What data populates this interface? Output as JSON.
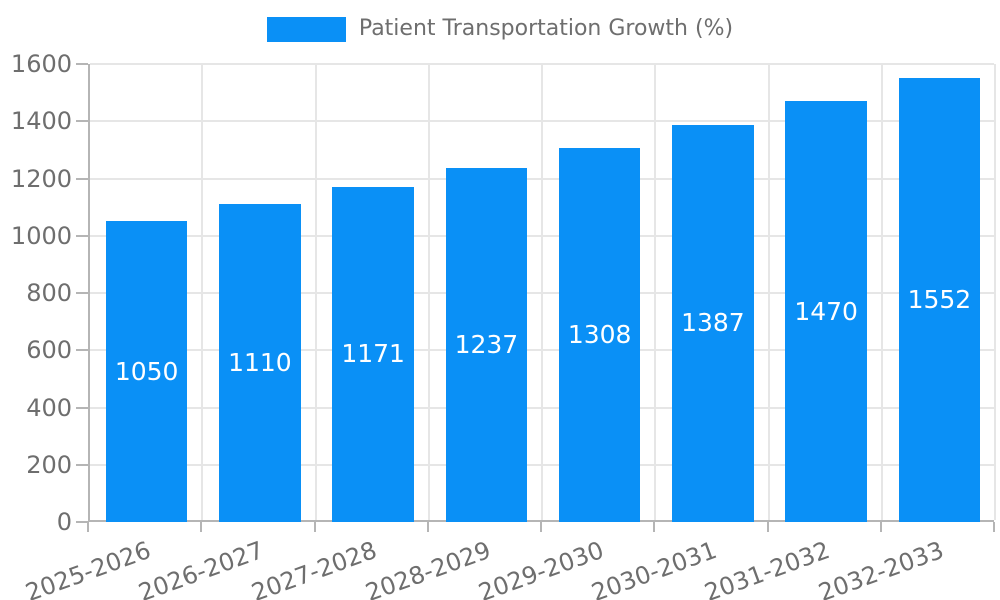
{
  "chart_data": {
    "type": "bar",
    "title": "Patient Transportation Growth (%)",
    "legend": {
      "label": "Patient Transportation Growth (%)",
      "position": "top"
    },
    "categories": [
      "2025-2026",
      "2026-2027",
      "2027-2028",
      "2028-2029",
      "2029-2030",
      "2030-2031",
      "2031-2032",
      "2032-2033"
    ],
    "values": [
      1050,
      1110,
      1171,
      1237,
      1308,
      1387,
      1470,
      1552
    ],
    "value_labels": [
      "1050",
      "1110",
      "1171",
      "1237",
      "1308",
      "1387",
      "1470",
      "1552"
    ],
    "xlabel": "",
    "ylabel": "",
    "ylim": [
      0,
      1600
    ],
    "y_ticks": [
      0,
      200,
      400,
      600,
      800,
      1000,
      1200,
      1400,
      1600
    ],
    "grid": true,
    "colors": {
      "bar": "#0a90f6",
      "value_label": "#ffffff",
      "tick_label": "#6e6e6e",
      "legend_label": "#6e6e6e",
      "gridline": "#e6e6e6",
      "axis": "#b5b5b5",
      "background": "#ffffff"
    }
  }
}
